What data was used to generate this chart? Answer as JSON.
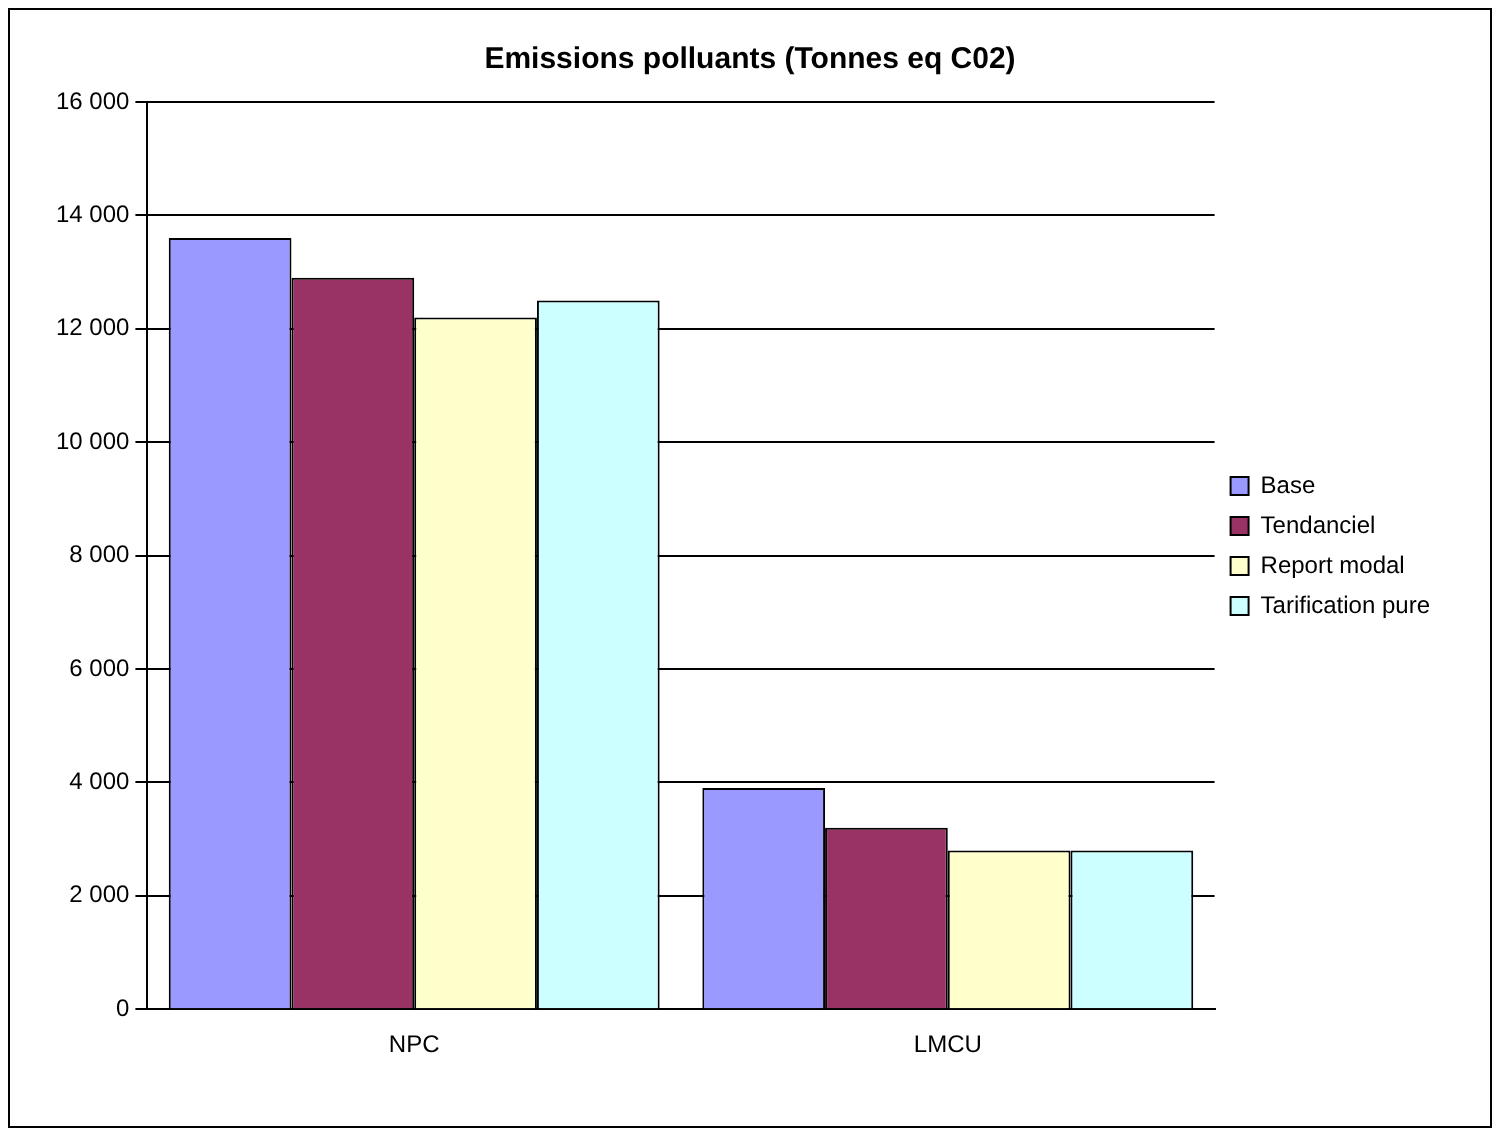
{
  "chart_data": {
    "type": "bar",
    "title": "Emissions polluants (Tonnes eq C02)",
    "categories": [
      "NPC",
      "LMCU"
    ],
    "series": [
      {
        "name": "Base",
        "color": "#9999ff",
        "values": [
          13600,
          3900
        ]
      },
      {
        "name": "Tendanciel",
        "color": "#993366",
        "values": [
          12900,
          3200
        ]
      },
      {
        "name": "Report modal",
        "color": "#ffffcc",
        "values": [
          12200,
          2800
        ]
      },
      {
        "name": "Tarification pure",
        "color": "#ccffff",
        "values": [
          12500,
          2800
        ]
      }
    ],
    "ylim": [
      0,
      16000
    ],
    "yticks": [
      {
        "value": 0,
        "label": "0"
      },
      {
        "value": 2000,
        "label": "2 000"
      },
      {
        "value": 4000,
        "label": "4 000"
      },
      {
        "value": 6000,
        "label": "6 000"
      },
      {
        "value": 8000,
        "label": "8 000"
      },
      {
        "value": 10000,
        "label": "10 000"
      },
      {
        "value": 12000,
        "label": "12 000"
      },
      {
        "value": 14000,
        "label": "14 000"
      },
      {
        "value": 16000,
        "label": "16 000"
      }
    ],
    "grid": "y",
    "legend": "right"
  }
}
